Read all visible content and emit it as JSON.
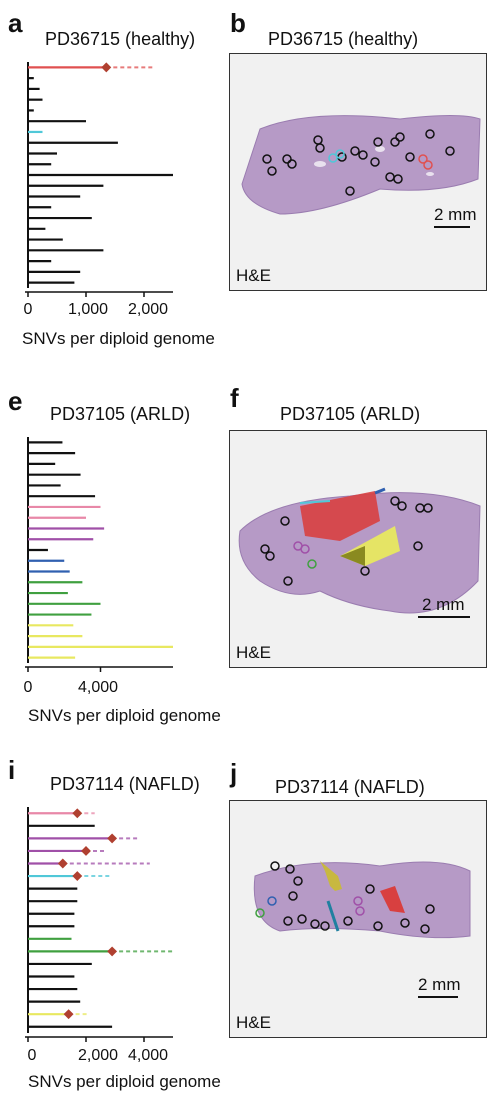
{
  "colors": {
    "branch": "#111111",
    "node_marker": "#b04030",
    "tissue": "#b89ac8",
    "red": "#e05050",
    "cyan": "#50c8d8",
    "blue": "#3060b0",
    "purple": "#a050a8",
    "green": "#40a040",
    "yellow": "#e8e860",
    "olive": "#8a8a20",
    "pink": "#e888a8"
  },
  "panels": {
    "a": {
      "letter": "a",
      "title": "PD36715 (healthy)",
      "xlabel": "SNVs per diploid genome",
      "ticks": [
        "0",
        "1,000",
        "2,000"
      ]
    },
    "b": {
      "letter": "b",
      "title": "PD36715 (healthy)",
      "scale": "2 mm",
      "stain": "H&E"
    },
    "e": {
      "letter": "e",
      "title": "PD37105 (ARLD)",
      "xlabel": "SNVs per diploid genome",
      "ticks": [
        "0",
        "4,000"
      ]
    },
    "f": {
      "letter": "f",
      "title": "PD37105 (ARLD)",
      "scale": "2 mm",
      "stain": "H&E"
    },
    "i": {
      "letter": "i",
      "title": "PD37114 (NAFLD)",
      "xlabel": "SNVs per diploid genome",
      "ticks": [
        "0",
        "2,000",
        "4,000"
      ]
    },
    "j": {
      "letter": "j",
      "title": "PD37114 (NAFLD)",
      "scale": "2 mm",
      "stain": "H&E"
    }
  },
  "chart_data": [
    {
      "type": "bar",
      "panel": "a",
      "title": "PD36715 (healthy)",
      "xlabel": "SNVs per diploid genome",
      "xlim": [
        0,
        2500
      ],
      "x_ticks": [
        0,
        1000,
        2000
      ],
      "tree_stem_value": 1400,
      "branches": [
        {
          "value": 1350,
          "color": "red",
          "dashed_value": 2150
        },
        {
          "value": 100,
          "color": "black"
        },
        {
          "value": 200,
          "color": "black"
        },
        {
          "value": 250,
          "color": "black"
        },
        {
          "value": 100,
          "color": "black"
        },
        {
          "value": 1000,
          "color": "black"
        },
        {
          "value": 250,
          "color": "cyan"
        },
        {
          "value": 1550,
          "color": "black"
        },
        {
          "value": 500,
          "color": "black"
        },
        {
          "value": 400,
          "color": "black"
        },
        {
          "value": 2500,
          "color": "black"
        },
        {
          "value": 1300,
          "color": "black"
        },
        {
          "value": 900,
          "color": "black"
        },
        {
          "value": 400,
          "color": "black"
        },
        {
          "value": 1100,
          "color": "black"
        },
        {
          "value": 300,
          "color": "black"
        },
        {
          "value": 600,
          "color": "black"
        },
        {
          "value": 1300,
          "color": "black"
        },
        {
          "value": 400,
          "color": "black"
        },
        {
          "value": 900,
          "color": "black"
        },
        {
          "value": 800,
          "color": "black"
        }
      ]
    },
    {
      "type": "bar",
      "panel": "e",
      "title": "PD37105 (ARLD)",
      "xlabel": "SNVs per diploid genome",
      "xlim": [
        0,
        8000
      ],
      "x_ticks": [
        0,
        4000
      ],
      "branches": [
        {
          "value": 1900,
          "color": "black"
        },
        {
          "value": 2600,
          "color": "black"
        },
        {
          "value": 1500,
          "color": "black"
        },
        {
          "value": 2900,
          "color": "black"
        },
        {
          "value": 1800,
          "color": "black"
        },
        {
          "value": 3700,
          "color": "black"
        },
        {
          "value": 4000,
          "color": "pink"
        },
        {
          "value": 3200,
          "color": "pink"
        },
        {
          "value": 4200,
          "color": "purple"
        },
        {
          "value": 3600,
          "color": "purple"
        },
        {
          "value": 1100,
          "color": "black"
        },
        {
          "value": 2000,
          "color": "blue"
        },
        {
          "value": 2300,
          "color": "blue"
        },
        {
          "value": 3000,
          "color": "green"
        },
        {
          "value": 2200,
          "color": "green"
        },
        {
          "value": 4000,
          "color": "green"
        },
        {
          "value": 3500,
          "color": "green"
        },
        {
          "value": 2500,
          "color": "yellow"
        },
        {
          "value": 3000,
          "color": "yellow"
        },
        {
          "value": 8000,
          "color": "yellow"
        },
        {
          "value": 2600,
          "color": "yellow"
        }
      ]
    },
    {
      "type": "bar",
      "panel": "i",
      "title": "PD37114 (NAFLD)",
      "xlabel": "SNVs per diploid genome",
      "xlim": [
        0,
        5000
      ],
      "x_ticks": [
        0,
        2000,
        4000
      ],
      "branches": [
        {
          "value": 1700,
          "color": "pink",
          "dashed_value": 2300
        },
        {
          "value": 2300,
          "color": "black"
        },
        {
          "value": 2900,
          "color": "purple",
          "dashed_value": 3800
        },
        {
          "value": 2000,
          "color": "purple",
          "dashed_value": 2700
        },
        {
          "value": 1200,
          "color": "purple",
          "dashed_value": 4200
        },
        {
          "value": 1700,
          "color": "cyan",
          "dashed_value": 2900
        },
        {
          "value": 1700,
          "color": "black"
        },
        {
          "value": 1700,
          "color": "black"
        },
        {
          "value": 1600,
          "color": "black"
        },
        {
          "value": 1600,
          "color": "black"
        },
        {
          "value": 1500,
          "color": "green"
        },
        {
          "value": 2900,
          "color": "green",
          "dashed_value": 5000
        },
        {
          "value": 2200,
          "color": "black"
        },
        {
          "value": 1600,
          "color": "black"
        },
        {
          "value": 1700,
          "color": "black"
        },
        {
          "value": 1800,
          "color": "black"
        },
        {
          "value": 1400,
          "color": "yellow",
          "dashed_value": 2100
        },
        {
          "value": 2900,
          "color": "black"
        }
      ]
    }
  ]
}
